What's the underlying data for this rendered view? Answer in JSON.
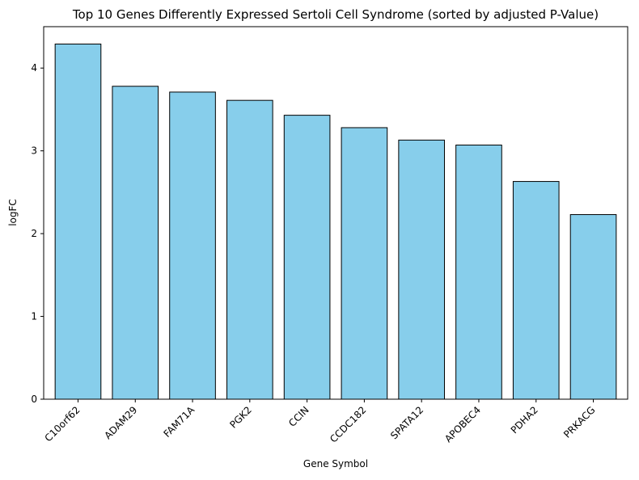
{
  "chart_data": {
    "type": "bar",
    "title": "Top 10 Genes Differently Expressed Sertoli Cell Syndrome (sorted by adjusted P-Value)",
    "xlabel": "Gene Symbol",
    "ylabel": "logFC",
    "categories": [
      "C10orf62",
      "ADAM29",
      "FAM71A",
      "PGK2",
      "CCIN",
      "CCDC182",
      "SPATA12",
      "APOBEC4",
      "PDHA2",
      "PRKACG"
    ],
    "values": [
      4.29,
      3.78,
      3.71,
      3.61,
      3.43,
      3.28,
      3.13,
      3.07,
      2.63,
      2.23
    ],
    "ylim": [
      0,
      4.5
    ],
    "yticks": [
      0,
      1,
      2,
      3,
      4
    ],
    "grid": false,
    "legend": "none",
    "colors": {
      "bar_fill": "#87CEEB",
      "bar_edge": "#000000",
      "axes": "#000000"
    }
  }
}
